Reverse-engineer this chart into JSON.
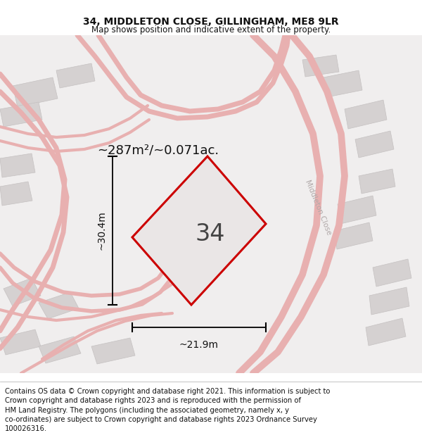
{
  "title": "34, MIDDLETON CLOSE, GILLINGHAM, ME8 9LR",
  "subtitle": "Map shows position and indicative extent of the property.",
  "footer": "Contains OS data © Crown copyright and database right 2021. This information is subject to Crown copyright and database rights 2023 and is reproduced with the permission of HM Land Registry. The polygons (including the associated geometry, namely x, y co-ordinates) are subject to Crown copyright and database rights 2023 Ordnance Survey 100026316.",
  "area_text": "~287m²/~0.071ac.",
  "width_text": "~21.9m",
  "height_text": "~30.4m",
  "street_label": "Middleton Close",
  "plot_number": "34",
  "map_bg": "#f0eeee",
  "plot_fill": "#e8e6e6",
  "plot_edge_color": "#cc0000",
  "road_color": "#e8b0b0",
  "building_color": "#d5d1d1",
  "building_edge": "#c5c1c1",
  "title_fontsize": 10,
  "subtitle_fontsize": 8.5,
  "footer_fontsize": 7.2
}
